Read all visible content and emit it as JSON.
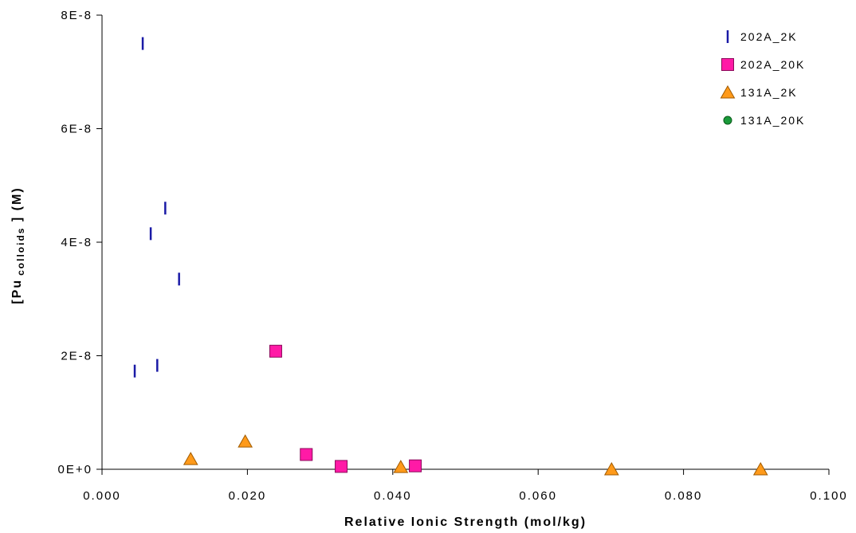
{
  "chart_data": {
    "type": "scatter",
    "xlabel": "Relative Ionic Strength (mol/kg)",
    "ylabel": {
      "prefix": "[Pu",
      "subscript": "colloids",
      "suffix": " ] (M)"
    },
    "xlim": [
      0.0,
      0.1
    ],
    "ylim": [
      0,
      8e-08
    ],
    "x_ticks": [
      {
        "value": 0.0,
        "label": "0.000"
      },
      {
        "value": 0.02,
        "label": "0.020"
      },
      {
        "value": 0.04,
        "label": "0.040"
      },
      {
        "value": 0.06,
        "label": "0.060"
      },
      {
        "value": 0.08,
        "label": "0.080"
      },
      {
        "value": 0.1,
        "label": "0.100"
      }
    ],
    "y_ticks": [
      {
        "value": 0,
        "label": "0E+0"
      },
      {
        "value": 2e-08,
        "label": "2E-8"
      },
      {
        "value": 4e-08,
        "label": "4E-8"
      },
      {
        "value": 6e-08,
        "label": "6E-8"
      },
      {
        "value": 8e-08,
        "label": "8E-8"
      }
    ],
    "grid": false,
    "legend_position": "top-right",
    "series": [
      {
        "name": "202A_2K",
        "marker": "dash",
        "color": "#1a1aa6",
        "points": [
          {
            "x": 0.0056,
            "y": 7.5e-08
          },
          {
            "x": 0.0087,
            "y": 4.6e-08
          },
          {
            "x": 0.0067,
            "y": 4.15e-08
          },
          {
            "x": 0.0106,
            "y": 3.35e-08
          },
          {
            "x": 0.0045,
            "y": 1.73e-08
          },
          {
            "x": 0.0076,
            "y": 1.83e-08
          }
        ]
      },
      {
        "name": "202A_20K",
        "marker": "square",
        "color": "#ff1aa6",
        "points": [
          {
            "x": 0.0239,
            "y": 2.08e-08
          },
          {
            "x": 0.0281,
            "y": 2.6e-09
          },
          {
            "x": 0.0329,
            "y": 5e-10
          },
          {
            "x": 0.0431,
            "y": 6e-10
          }
        ]
      },
      {
        "name": "131A_2K",
        "marker": "triangle",
        "color": "#ff9a1a",
        "points": [
          {
            "x": 0.0122,
            "y": 1.8e-09
          },
          {
            "x": 0.0197,
            "y": 4.9e-09
          },
          {
            "x": 0.0411,
            "y": 4e-10
          },
          {
            "x": 0.0701,
            "y": 0
          },
          {
            "x": 0.0906,
            "y": 0
          }
        ]
      },
      {
        "name": "131A_20K",
        "marker": "circle",
        "color": "#1a9a3a",
        "points": []
      }
    ]
  }
}
